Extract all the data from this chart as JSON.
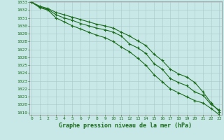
{
  "title": "Graphe pression niveau de la mer (hPa)",
  "background_color": "#c8e8e8",
  "grid_color": "#a8c8c8",
  "line_color": "#1a6b1a",
  "x_ticks": [
    0,
    1,
    2,
    3,
    4,
    5,
    6,
    7,
    8,
    9,
    10,
    11,
    12,
    13,
    14,
    15,
    16,
    17,
    18,
    19,
    20,
    21,
    22,
    23
  ],
  "y_min": 1019,
  "y_max": 1033,
  "y_ticks": [
    1019,
    1020,
    1021,
    1022,
    1023,
    1024,
    1025,
    1026,
    1027,
    1028,
    1029,
    1030,
    1031,
    1032,
    1033
  ],
  "series": [
    [
      1033.0,
      1032.4,
      1032.1,
      1031.4,
      1031.0,
      1030.7,
      1030.3,
      1030.0,
      1029.7,
      1029.5,
      1029.2,
      1028.7,
      1027.7,
      1027.2,
      1026.5,
      1025.2,
      1024.5,
      1023.3,
      1022.8,
      1022.4,
      1021.6,
      1021.2,
      1020.0,
      1019.3
    ],
    [
      1033.0,
      1032.5,
      1032.2,
      1031.7,
      1031.4,
      1031.1,
      1030.8,
      1030.5,
      1030.2,
      1030.0,
      1029.7,
      1029.2,
      1028.7,
      1028.1,
      1027.5,
      1026.4,
      1025.6,
      1024.5,
      1023.9,
      1023.5,
      1022.8,
      1021.6,
      1020.2,
      1019.1
    ],
    [
      1033.0,
      1032.3,
      1032.0,
      1031.0,
      1030.5,
      1030.0,
      1029.6,
      1029.2,
      1028.8,
      1028.5,
      1028.0,
      1027.3,
      1026.7,
      1025.9,
      1025.0,
      1023.8,
      1022.9,
      1022.0,
      1021.5,
      1021.0,
      1020.5,
      1020.2,
      1019.5,
      1018.7
    ]
  ]
}
